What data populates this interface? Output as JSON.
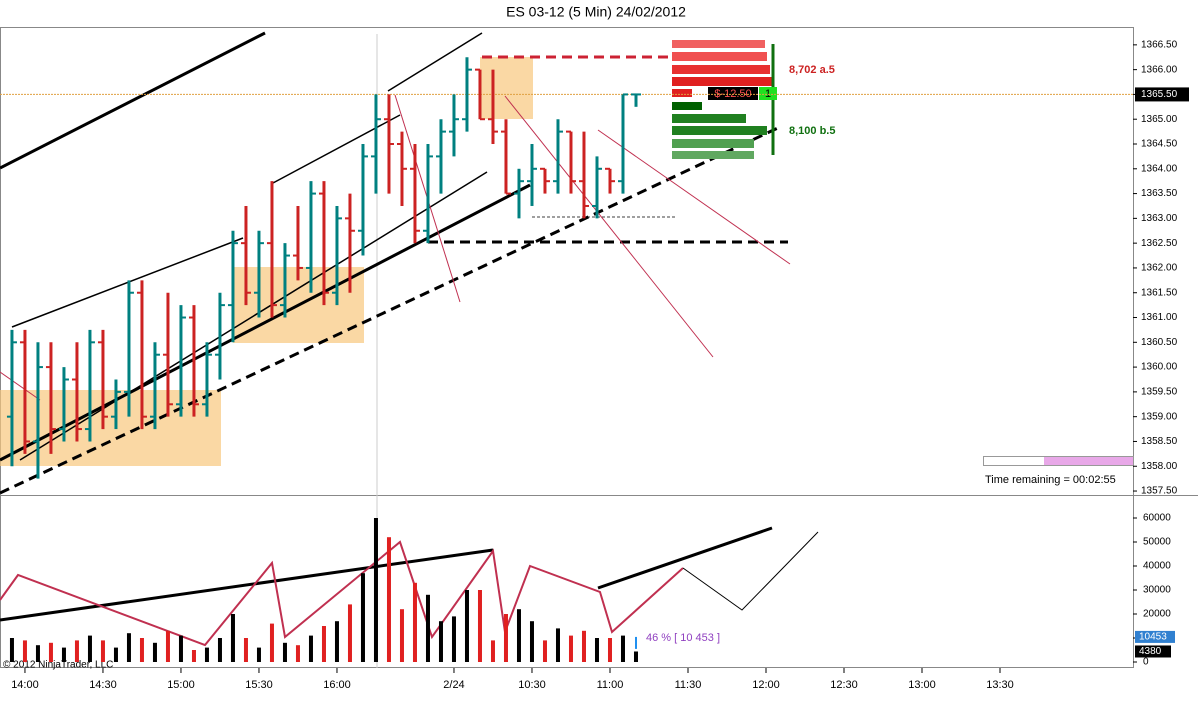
{
  "chart_data": {
    "type": "ohlc",
    "title": "ES 03-12 (5 Min)  24/02/2012",
    "open": [
      1359.0,
      1360.5,
      1358.5,
      1360.0,
      1358.75,
      1359.75,
      1358.75,
      1360.5,
      1359.0,
      1359.5,
      1361.5,
      1359.0,
      1360.25,
      1359.25,
      1361.0,
      1359.25,
      1360.25,
      1361.25,
      1362.5,
      1361.5,
      1362.5,
      1361.25,
      1362.25,
      1362.0,
      1363.5,
      1361.5,
      1363.0,
      1362.75,
      1364.25,
      1365.0,
      1364.5,
      1364.0,
      1362.75,
      1364.25,
      1364.75,
      1365.0,
      1366.0,
      1365.0,
      1364.75,
      1363.5,
      1363.75,
      1364.0,
      1363.75,
      1364.75,
      1363.75,
      1363.25,
      1364.0,
      1363.75,
      1365.5
    ],
    "high": [
      1360.75,
      1360.75,
      1360.5,
      1360.5,
      1360.0,
      1360.5,
      1360.75,
      1360.75,
      1359.75,
      1361.75,
      1361.75,
      1360.5,
      1361.5,
      1361.25,
      1361.25,
      1360.5,
      1361.5,
      1362.75,
      1363.25,
      1362.75,
      1363.75,
      1362.5,
      1363.25,
      1363.75,
      1363.75,
      1363.25,
      1363.5,
      1364.5,
      1365.5,
      1365.5,
      1364.75,
      1364.5,
      1364.5,
      1365.0,
      1365.5,
      1366.25,
      1366.0,
      1366.0,
      1365.0,
      1364.0,
      1364.5,
      1364.0,
      1365.0,
      1364.75,
      1364.75,
      1364.25,
      1364.0,
      1365.5,
      1365.5
    ],
    "low": [
      1358.0,
      1358.25,
      1357.75,
      1358.25,
      1358.5,
      1358.5,
      1358.5,
      1358.75,
      1358.75,
      1359.0,
      1358.75,
      1358.75,
      1359.0,
      1359.0,
      1359.0,
      1359.0,
      1359.75,
      1360.5,
      1361.25,
      1361.0,
      1361.0,
      1361.0,
      1361.75,
      1361.5,
      1361.25,
      1361.25,
      1361.5,
      1362.25,
      1363.5,
      1363.5,
      1363.25,
      1362.5,
      1362.5,
      1363.5,
      1364.25,
      1364.75,
      1365.0,
      1364.5,
      1363.5,
      1363.0,
      1363.25,
      1363.5,
      1363.5,
      1363.5,
      1363.0,
      1363.0,
      1363.5,
      1363.5,
      1365.25
    ],
    "close": [
      1360.5,
      1358.5,
      1360.0,
      1358.75,
      1359.75,
      1358.75,
      1360.5,
      1359.0,
      1359.5,
      1361.5,
      1359.0,
      1360.25,
      1359.25,
      1361.0,
      1359.25,
      1360.25,
      1361.25,
      1362.5,
      1361.5,
      1362.5,
      1361.25,
      1362.25,
      1362.0,
      1363.5,
      1361.5,
      1363.0,
      1362.75,
      1364.25,
      1365.0,
      1364.5,
      1364.0,
      1362.75,
      1364.25,
      1364.75,
      1365.0,
      1366.0,
      1365.0,
      1364.75,
      1363.5,
      1363.75,
      1364.0,
      1363.75,
      1364.75,
      1363.75,
      1363.25,
      1364.0,
      1363.75,
      1365.5,
      1365.5
    ],
    "volume": [
      10000,
      9000,
      7000,
      8000,
      6000,
      9000,
      11000,
      9000,
      6000,
      12000,
      10000,
      8000,
      13000,
      11000,
      5000,
      6000,
      10000,
      20000,
      10000,
      6000,
      16000,
      8000,
      7000,
      11000,
      15000,
      17000,
      24000,
      37000,
      60000,
      52000,
      22000,
      33000,
      28000,
      17000,
      19000,
      30000,
      30000,
      9000,
      20000,
      22000,
      17000,
      9000,
      14000,
      11000,
      13000,
      10000,
      10000,
      11000,
      4380
    ],
    "volume_labels": {
      "value": 4380,
      "label": "4380"
    },
    "volume_marker": {
      "value": 10453,
      "label": "10453"
    },
    "xlim": [
      -0.92,
      86.23
    ],
    "xticks": [
      {
        "value": 1,
        "label": "14:00"
      },
      {
        "value": 7,
        "label": "14:30"
      },
      {
        "value": 13,
        "label": "15:00"
      },
      {
        "value": 19,
        "label": "15:30"
      },
      {
        "value": 25,
        "label": "16:00"
      },
      {
        "value": 34,
        "label": "2/24"
      },
      {
        "value": 40,
        "label": "10:30"
      },
      {
        "value": 46,
        "label": "11:00"
      },
      {
        "value": 52,
        "label": "11:30"
      },
      {
        "value": 58,
        "label": "12:00"
      },
      {
        "value": 64,
        "label": "12:30"
      },
      {
        "value": 70,
        "label": "13:00"
      },
      {
        "value": 76,
        "label": "13:30"
      }
    ],
    "ylim": [
      1357.42,
      1366.86
    ],
    "yticks": [
      {
        "value": 1357.5,
        "label": "1357.50"
      },
      {
        "value": 1358,
        "label": "1358.00"
      },
      {
        "value": 1358.5,
        "label": "1358.50"
      },
      {
        "value": 1359,
        "label": "1359.00"
      },
      {
        "value": 1359.5,
        "label": "1359.50"
      },
      {
        "value": 1360,
        "label": "1360.00"
      },
      {
        "value": 1360.5,
        "label": "1360.50"
      },
      {
        "value": 1361,
        "label": "1361.00"
      },
      {
        "value": 1361.5,
        "label": "1361.50"
      },
      {
        "value": 1362,
        "label": "1362.00"
      },
      {
        "value": 1362.5,
        "label": "1362.50"
      },
      {
        "value": 1363,
        "label": "1363.00"
      },
      {
        "value": 1363.5,
        "label": "1363.50"
      },
      {
        "value": 1364,
        "label": "1364.00"
      },
      {
        "value": 1364.5,
        "label": "1364.50"
      },
      {
        "value": 1365,
        "label": "1365.00"
      },
      {
        "value": 1365.5,
        "label": "1365.50"
      },
      {
        "value": 1366,
        "label": "1366.00"
      },
      {
        "value": 1366.5,
        "label": "1366.50"
      }
    ],
    "vlim": [
      -2500,
      68750
    ],
    "vticks": [
      0,
      10000,
      20000,
      30000,
      40000,
      50000,
      60000
    ],
    "last_price": {
      "value": 1365.5,
      "label": "1365.50"
    },
    "up_color": "#008080",
    "down_color": "#cc2222",
    "ask_label": "8,702 a.5",
    "bid_label": "8,100 b.5",
    "pnl_label": "$-12.50",
    "position_label": "1",
    "time_remaining": "Time remaining = 00:02:55",
    "volume_note": "46 % [ 10 453 ]",
    "copyright": "© 2012 NinjaTrader, LLC"
  }
}
